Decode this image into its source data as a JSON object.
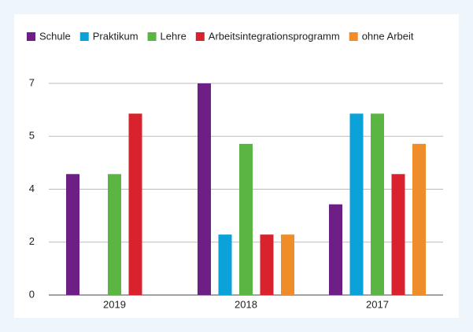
{
  "chart_data": {
    "type": "bar",
    "categories": [
      "2019",
      "2018",
      "2017"
    ],
    "series": [
      {
        "name": "Schule",
        "color": "#6e1f86",
        "values": [
          4,
          7,
          3
        ]
      },
      {
        "name": "Praktikum",
        "color": "#0aa2d8",
        "values": [
          0,
          2,
          6
        ]
      },
      {
        "name": "Lehre",
        "color": "#5bb543",
        "values": [
          4,
          5,
          6
        ]
      },
      {
        "name": "Arbeitsintegrationsprogramm",
        "color": "#d8232e",
        "values": [
          6,
          2,
          4
        ]
      },
      {
        "name": "ohne Arbeit",
        "color": "#ef8d2b",
        "values": [
          0,
          2,
          5
        ]
      }
    ],
    "ylim": [
      0,
      7
    ],
    "yticks": [
      0,
      {
        "value": 1.75,
        "label": "2"
      },
      {
        "value": 3.5,
        "label": "4"
      },
      {
        "value": 5.25,
        "label": "5"
      },
      7
    ],
    "grid": true,
    "legend": "top"
  }
}
